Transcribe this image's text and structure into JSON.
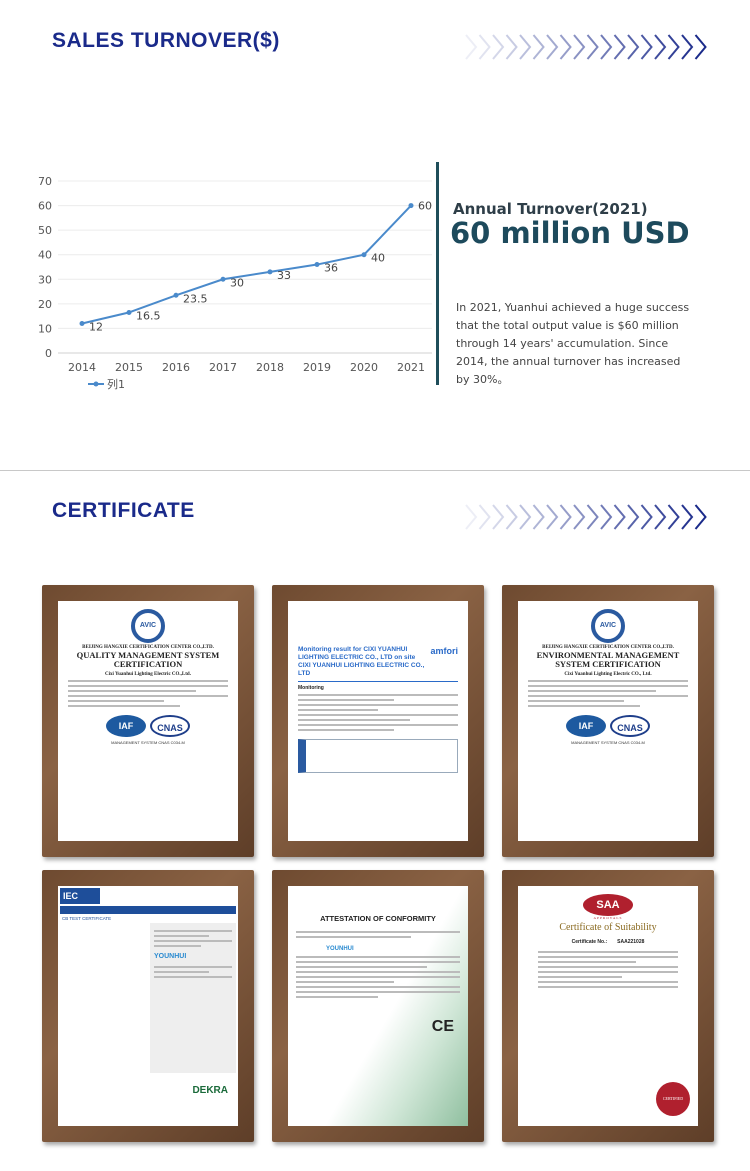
{
  "sales": {
    "heading": "SALES  TURNOVER($)",
    "subtitle": "Annual Turnover(2021)",
    "headline": "60 million USD",
    "description": "In 2021, Yuanhui achieved a huge success that the total output value is $60 million through 14 years' accumulation. Since 2014, the annual turnover has increased by 30%。"
  },
  "chart_data": {
    "type": "line",
    "x": [
      "2014",
      "2015",
      "2016",
      "2017",
      "2018",
      "2019",
      "2020",
      "2021"
    ],
    "series": [
      {
        "name": "列1",
        "values": [
          12,
          16.5,
          23.5,
          30,
          33,
          36,
          40,
          60
        ],
        "color": "#4a8acb"
      }
    ],
    "data_labels": [
      "12",
      "16.5",
      "23.5",
      "30",
      "33",
      "36",
      "40",
      "60"
    ],
    "yticks": [
      "0",
      "10",
      "20",
      "30",
      "40",
      "50",
      "60",
      "70"
    ],
    "ylim": [
      0,
      70
    ],
    "grid": true,
    "legend": "bottom-left"
  },
  "certificate": {
    "heading": "CERTIFICATE",
    "items": [
      {
        "org": "BEIJING HANGXIE CERTIFICATION CENTER CO.,LTD.",
        "title": "QUALITY MANAGEMENT SYSTEM CERTIFICATION",
        "company": "Cixi Yuanhui Lighting Electric CO.,Ltd.",
        "logo": "AVIC",
        "badges": [
          "IAF",
          "CNAS"
        ],
        "note": "MANAGEMENT SYSTEM CNAS C034-M"
      },
      {
        "title": "Monitoring result for CIXI YUANHUI LIGHTING ELECTRIC CO., LTD on site CIXI YUANHUI LIGHTING ELECTRIC CO., LTD",
        "logo": "amfori",
        "section": "Monitoring"
      },
      {
        "org": "BEIJING HANGXIE CERTIFICATION CENTER CO.,LTD.",
        "title": "ENVIRONMENTAL MANAGEMENT SYSTEM CERTIFICATION",
        "company": "Cixi Yuanhui Lighting Electric CO., Ltd.",
        "logo": "AVIC",
        "badges": [
          "IAF",
          "CNAS"
        ],
        "note": "MANAGEMENT SYSTEM CNAS C034-M"
      },
      {
        "logo": "IEC",
        "title": "CB TEST CERTIFICATE",
        "brand": "YOUNHUI",
        "issuer": "DEKRA"
      },
      {
        "title": "ATTESTATION OF CONFORMITY",
        "brand": "YOUNHUI",
        "mark": "CE"
      },
      {
        "logo": "SAA",
        "approvals": "APPROVALS",
        "title": "Certificate of Suitability",
        "cert_label": "Certificate No.:",
        "cert_no": "SAA221028",
        "stamp": "CERTIFIED"
      }
    ]
  }
}
